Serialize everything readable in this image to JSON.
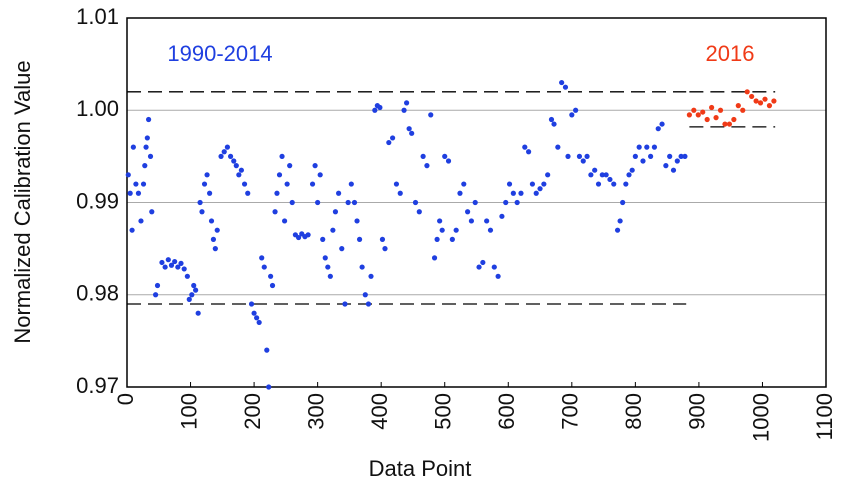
{
  "chart_data": {
    "type": "scatter",
    "xlabel": "Data Point",
    "ylabel": "Normalized Calibration Value",
    "xlim": [
      0,
      1100
    ],
    "xticks": [
      0,
      100,
      200,
      300,
      400,
      500,
      600,
      700,
      800,
      900,
      1000,
      1100
    ],
    "ylim": [
      0.97,
      1.01
    ],
    "yticks": [
      0.97,
      0.98,
      0.99,
      {
        "value": 1.0,
        "label": "1.00"
      },
      1.01
    ],
    "grid": true,
    "series": [
      {
        "name": "1990-2014",
        "color": "#1f3fe0",
        "x": [
          2,
          5,
          8,
          10,
          14,
          18,
          22,
          26,
          28,
          30,
          32,
          34,
          37,
          39,
          45,
          48,
          55,
          60,
          65,
          70,
          75,
          80,
          85,
          90,
          95,
          98,
          102,
          105,
          108,
          112,
          115,
          118,
          122,
          126,
          130,
          133,
          136,
          139,
          142,
          148,
          153,
          158,
          163,
          168,
          172,
          176,
          180,
          185,
          190,
          196,
          200,
          204,
          208,
          212,
          216,
          220,
          223,
          226,
          229,
          233,
          236,
          240,
          244,
          248,
          252,
          256,
          260,
          265,
          270,
          275,
          280,
          285,
          292,
          296,
          300,
          304,
          308,
          312,
          316,
          320,
          324,
          328,
          333,
          338,
          343,
          348,
          353,
          358,
          362,
          366,
          370,
          375,
          380,
          384,
          390,
          394,
          398,
          402,
          406,
          412,
          418,
          424,
          430,
          436,
          440,
          444,
          448,
          454,
          460,
          466,
          472,
          478,
          484,
          488,
          492,
          496,
          500,
          506,
          512,
          518,
          524,
          530,
          536,
          542,
          548,
          554,
          560,
          566,
          572,
          578,
          584,
          590,
          596,
          602,
          608,
          614,
          620,
          626,
          632,
          638,
          644,
          650,
          656,
          662,
          668,
          672,
          678,
          684,
          690,
          694,
          700,
          706,
          712,
          718,
          724,
          730,
          736,
          742,
          748,
          754,
          760,
          766,
          772,
          776,
          780,
          785,
          790,
          795,
          800,
          806,
          812,
          818,
          824,
          830,
          836,
          842,
          848,
          854,
          860,
          866,
          872,
          878
        ],
        "values": [
          0.993,
          0.991,
          0.987,
          0.996,
          0.992,
          0.991,
          0.988,
          0.992,
          0.994,
          0.996,
          0.997,
          0.999,
          0.995,
          0.989,
          0.98,
          0.981,
          0.9835,
          0.983,
          0.9838,
          0.9832,
          0.9836,
          0.983,
          0.9834,
          0.9828,
          0.982,
          0.9795,
          0.98,
          0.981,
          0.9805,
          0.978,
          0.99,
          0.989,
          0.992,
          0.993,
          0.991,
          0.988,
          0.986,
          0.985,
          0.987,
          0.995,
          0.9955,
          0.996,
          0.995,
          0.9945,
          0.994,
          0.993,
          0.9935,
          0.992,
          0.991,
          0.979,
          0.978,
          0.9775,
          0.977,
          0.984,
          0.983,
          0.974,
          0.97,
          0.982,
          0.981,
          0.989,
          0.991,
          0.993,
          0.995,
          0.988,
          0.992,
          0.994,
          0.99,
          0.9865,
          0.9862,
          0.9866,
          0.9863,
          0.9865,
          0.992,
          0.994,
          0.99,
          0.993,
          0.986,
          0.984,
          0.983,
          0.982,
          0.987,
          0.989,
          0.991,
          0.985,
          0.979,
          0.99,
          0.992,
          0.99,
          0.988,
          0.986,
          0.983,
          0.98,
          0.979,
          0.982,
          1.0,
          1.0005,
          1.0003,
          0.986,
          0.985,
          0.9965,
          0.997,
          0.992,
          0.991,
          1.0,
          1.0008,
          0.998,
          0.9975,
          0.99,
          0.989,
          0.995,
          0.994,
          0.9995,
          0.984,
          0.986,
          0.988,
          0.987,
          0.995,
          0.9945,
          0.986,
          0.987,
          0.991,
          0.992,
          0.989,
          0.988,
          0.99,
          0.983,
          0.9835,
          0.988,
          0.987,
          0.983,
          0.982,
          0.9885,
          0.99,
          0.992,
          0.991,
          0.99,
          0.991,
          0.996,
          0.9955,
          0.992,
          0.991,
          0.9915,
          0.992,
          0.993,
          0.999,
          0.9985,
          0.996,
          1.003,
          1.0025,
          0.995,
          0.9995,
          1.0,
          0.995,
          0.9945,
          0.995,
          0.993,
          0.9935,
          0.992,
          0.993,
          0.993,
          0.9925,
          0.992,
          0.987,
          0.988,
          0.99,
          0.992,
          0.993,
          0.9935,
          0.995,
          0.996,
          0.9945,
          0.996,
          0.995,
          0.996,
          0.998,
          0.9985,
          0.994,
          0.995,
          0.9935,
          0.9945,
          0.995,
          0.995
        ],
        "hlines": [
          {
            "y": 1.002,
            "xmin": 0,
            "xmax": 880
          },
          {
            "y": 0.979,
            "xmin": 0,
            "xmax": 880
          }
        ]
      },
      {
        "name": "2016",
        "color": "#f03a17",
        "x": [
          885,
          892,
          899,
          906,
          913,
          920,
          927,
          934,
          941,
          948,
          955,
          962,
          969,
          976,
          983,
          990,
          997,
          1004,
          1011,
          1018
        ],
        "values": [
          0.9995,
          1.0,
          0.9995,
          0.9998,
          0.999,
          1.0003,
          0.9992,
          1.0,
          0.9985,
          0.9985,
          0.999,
          1.0005,
          1.0,
          1.002,
          1.0015,
          1.001,
          1.0008,
          1.0012,
          1.0005,
          1.001
        ],
        "hlines": [
          {
            "y": 1.002,
            "xmin": 885,
            "xmax": 1020
          },
          {
            "y": 0.9982,
            "xmin": 885,
            "xmax": 1020
          }
        ]
      }
    ]
  }
}
